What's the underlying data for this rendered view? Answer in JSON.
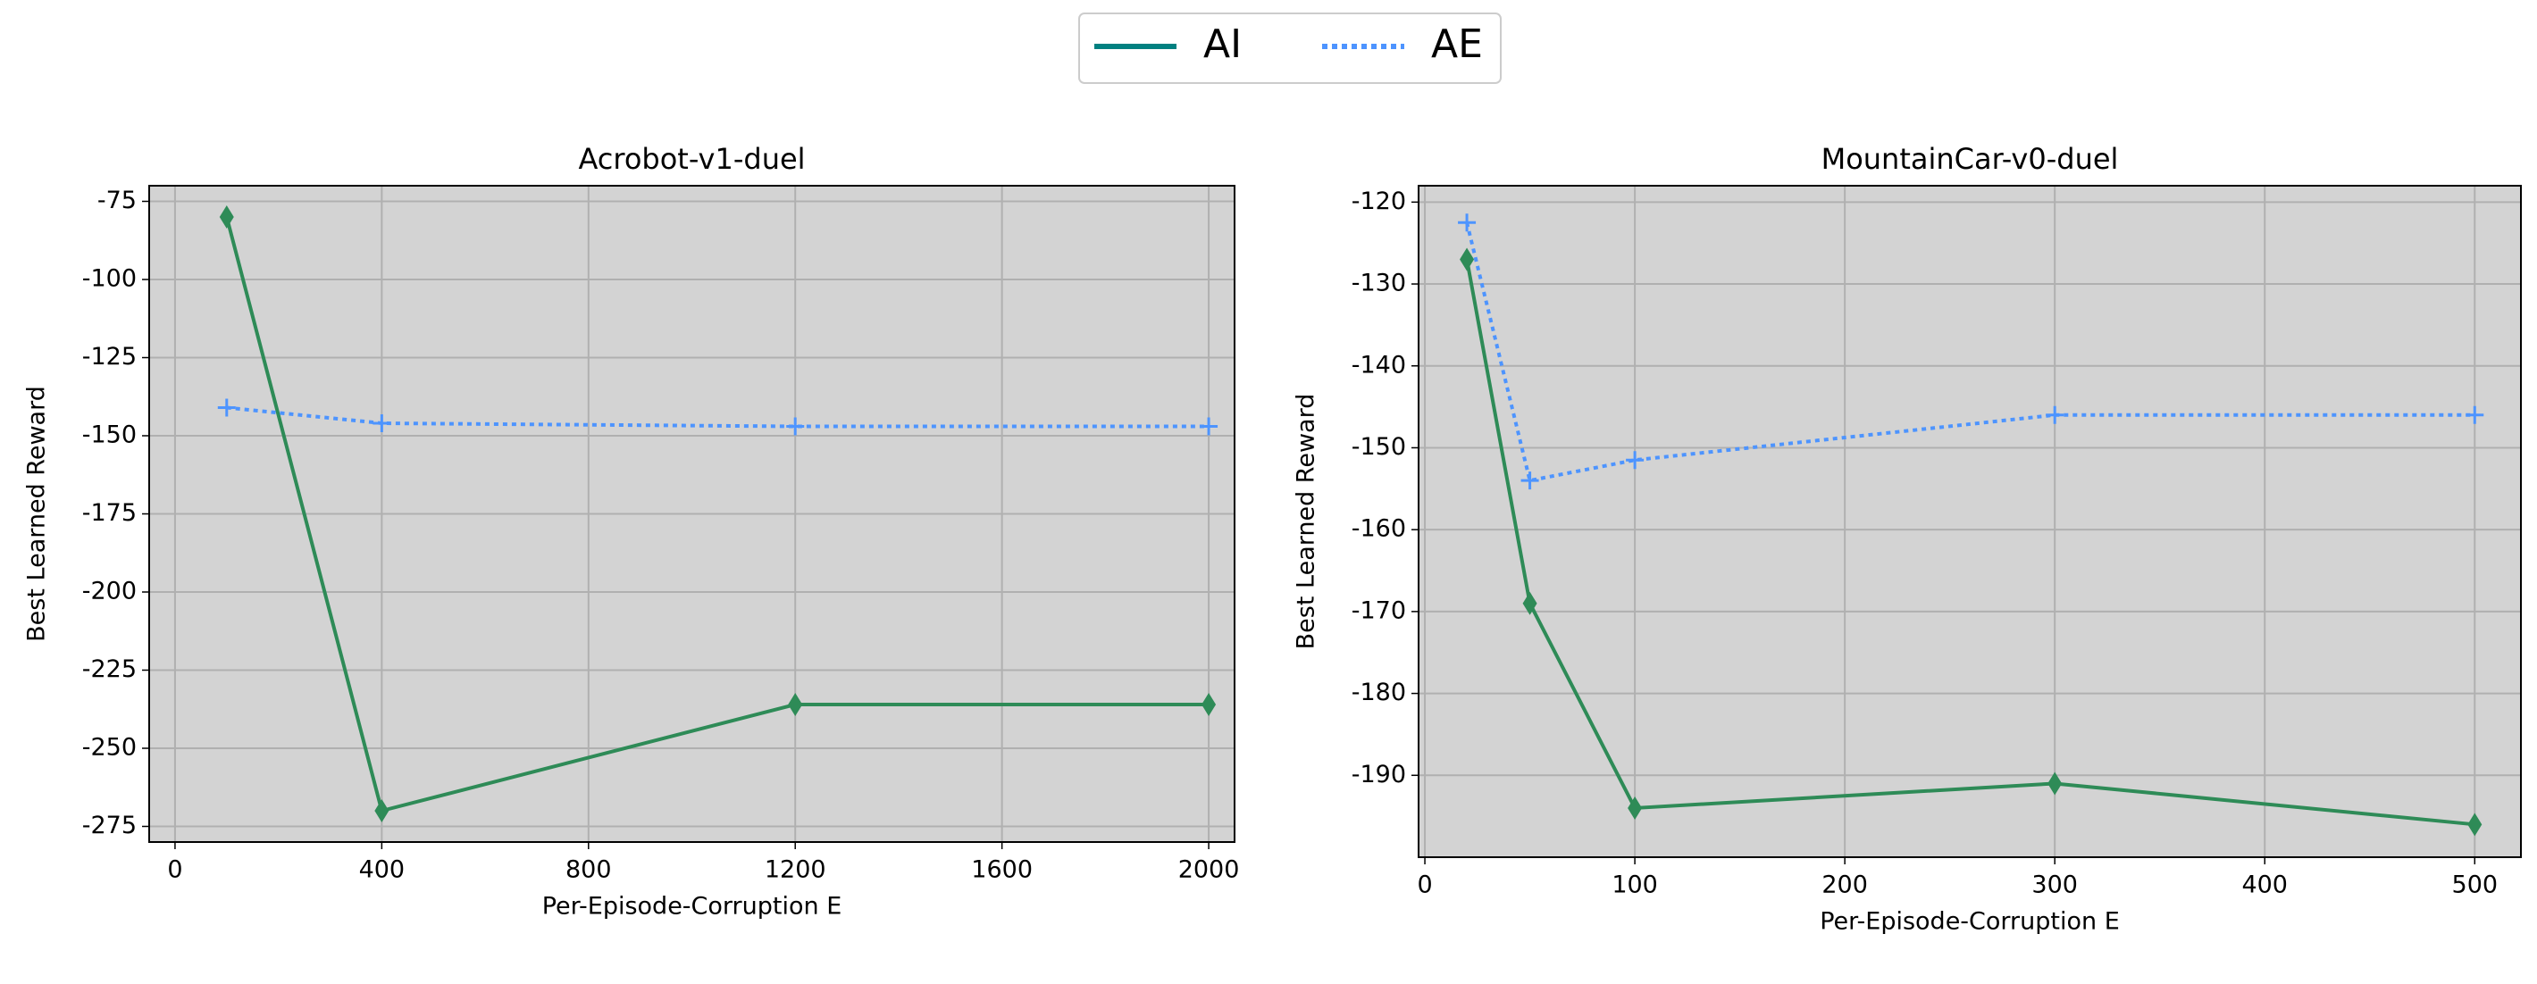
{
  "legend": {
    "entries": [
      {
        "name": "AI",
        "color": "#008080",
        "dash": "solid"
      },
      {
        "name": "AE",
        "color": "#4d94ff",
        "dash": "dotted"
      }
    ]
  },
  "chart_data": [
    {
      "type": "line",
      "title": "Acrobot-v1-duel",
      "xlabel": "Per-Episode-Corruption E",
      "ylabel": "Best Learned Reward",
      "x": [
        100,
        400,
        1200,
        2000
      ],
      "series": [
        {
          "color": "#2e8b57",
          "marker": "diamond",
          "dash": "solid",
          "values": [
            -80,
            -270,
            -236,
            -236
          ]
        },
        {
          "color": "#4d94ff",
          "marker": "plus",
          "dash": "dotted",
          "values": [
            -141,
            -146,
            -147,
            -147
          ]
        }
      ],
      "xlim": [
        -50,
        2050
      ],
      "xticks": [
        0,
        400,
        800,
        1200,
        1600,
        2000
      ],
      "ylim": [
        -280,
        -70
      ],
      "yticks": [
        -275,
        -250,
        -225,
        -200,
        -175,
        -150,
        -125,
        -100,
        -75
      ],
      "grid": true
    },
    {
      "type": "line",
      "title": "MountainCar-v0-duel",
      "xlabel": "Per-Episode-Corruption E",
      "ylabel": "Best Learned Reward",
      "x": [
        20,
        50,
        100,
        300,
        500
      ],
      "series": [
        {
          "color": "#2e8b57",
          "marker": "diamond",
          "dash": "solid",
          "values": [
            -127,
            -169,
            -194,
            -191,
            -196
          ]
        },
        {
          "color": "#4d94ff",
          "marker": "plus",
          "dash": "dotted",
          "values": [
            -122.5,
            -154,
            -151.5,
            -146,
            -146
          ]
        }
      ],
      "xlim": [
        -3,
        522
      ],
      "xticks": [
        0,
        100,
        200,
        300,
        400,
        500
      ],
      "ylim": [
        -200,
        -118
      ],
      "yticks": [
        -190,
        -180,
        -170,
        -160,
        -150,
        -140,
        -130,
        -120
      ],
      "grid": true
    }
  ]
}
